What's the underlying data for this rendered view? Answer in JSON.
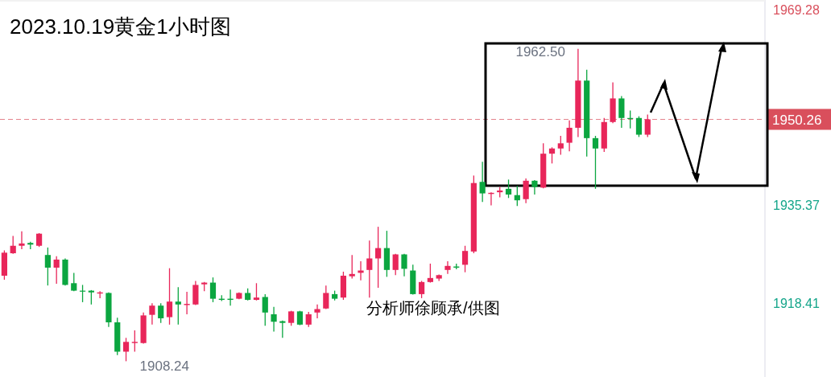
{
  "chart_data": {
    "type": "candlestick",
    "title": "2023.10.19黄金1小时图",
    "categories": [
      null,
      null,
      null,
      null,
      null,
      null,
      null,
      null,
      null,
      null,
      null,
      null,
      null,
      null,
      null,
      null,
      null,
      null,
      null,
      null,
      null,
      null,
      null,
      null,
      null,
      null,
      null,
      null,
      null,
      null,
      null,
      null,
      null,
      null,
      null,
      null,
      null,
      null,
      null,
      null,
      null,
      null,
      null,
      null,
      null,
      null,
      null,
      null,
      null,
      null,
      null,
      null,
      null,
      null,
      null,
      null,
      null,
      null,
      null,
      null,
      null,
      null,
      null,
      null,
      null,
      null,
      null,
      null,
      null,
      null,
      null,
      null,
      null,
      null,
      null,
      null,
      null,
      null,
      null,
      null,
      null,
      null,
      null,
      null,
      null,
      null,
      null,
      null
    ],
    "ohlc": [
      [
        1923.1,
        1927.5,
        1922.4,
        1927.1
      ],
      [
        1927.0,
        1930.0,
        1926.9,
        1928.3
      ],
      [
        1928.3,
        1930.8,
        1927.7,
        1928.7
      ],
      [
        1928.8,
        1929.0,
        1927.7,
        1928.5
      ],
      [
        1928.3,
        1930.5,
        1928.1,
        1930.4
      ],
      [
        1926.7,
        1928.0,
        1921.4,
        1924.5
      ],
      [
        1924.5,
        1926.5,
        1921.7,
        1925.9
      ],
      [
        1925.9,
        1926.1,
        1921.4,
        1921.5
      ],
      [
        1921.8,
        1923.6,
        1920.4,
        1920.5
      ],
      [
        1920.5,
        1921.5,
        1918.5,
        1920.4
      ],
      [
        1920.5,
        1920.6,
        1918.1,
        1920.2
      ],
      [
        1920.0,
        1920.4,
        1919.2,
        1920.2
      ],
      [
        1920.1,
        1920.2,
        1914.2,
        1915.0
      ],
      [
        1915.0,
        1915.8,
        1909.3,
        1909.9
      ],
      [
        1909.9,
        1912.3,
        1908.24,
        1911.6
      ],
      [
        1911.4,
        1913.6,
        1909.9,
        1911.6
      ],
      [
        1911.4,
        1916.7,
        1911.3,
        1916.2
      ],
      [
        1916.3,
        1918.3,
        1914.6,
        1917.9
      ],
      [
        1917.9,
        1918.3,
        1914.9,
        1915.7
      ],
      [
        1915.9,
        1924.4,
        1914.6,
        1918.6
      ],
      [
        1918.6,
        1921.1,
        1914.6,
        1918.1
      ],
      [
        1918.0,
        1920.3,
        1916.4,
        1918.2
      ],
      [
        1918.1,
        1922.2,
        1918.0,
        1921.5
      ],
      [
        1921.6,
        1922.0,
        1920.4,
        1921.9
      ],
      [
        1921.9,
        1922.8,
        1918.5,
        1919.1
      ],
      [
        1919.1,
        1919.7,
        1918.7,
        1918.9
      ],
      [
        1919.1,
        1920.7,
        1917.9,
        1918.9
      ],
      [
        1919.1,
        1920.2,
        1919.0,
        1920.1
      ],
      [
        1920.1,
        1920.9,
        1918.8,
        1918.9
      ],
      [
        1918.9,
        1921.8,
        1918.8,
        1919.3
      ],
      [
        1919.4,
        1919.9,
        1914.4,
        1916.7
      ],
      [
        1916.4,
        1917.7,
        1913.4,
        1915.1
      ],
      [
        1915.2,
        1915.3,
        1912.3,
        1914.9
      ],
      [
        1914.9,
        1917.0,
        1914.4,
        1916.9
      ],
      [
        1916.9,
        1917.0,
        1914.5,
        1914.6
      ],
      [
        1914.6,
        1916.8,
        1914.2,
        1916.4
      ],
      [
        1916.7,
        1918.1,
        1915.7,
        1917.3
      ],
      [
        1917.4,
        1921.4,
        1917.3,
        1920.1
      ],
      [
        1919.9,
        1920.5,
        1918.8,
        1919.1
      ],
      [
        1919.3,
        1923.8,
        1918.9,
        1923.1
      ],
      [
        1923.0,
        1926.7,
        1922.6,
        1923.4
      ],
      [
        1923.6,
        1925.6,
        1922.3,
        1924.0
      ],
      [
        1924.1,
        1929.2,
        1919.3,
        1926.1
      ],
      [
        1926.1,
        1931.6,
        1921.0,
        1927.9
      ],
      [
        1927.9,
        1930.9,
        1922.9,
        1924.1
      ],
      [
        1924.1,
        1926.9,
        1923.2,
        1926.8
      ],
      [
        1926.8,
        1926.9,
        1923.0,
        1924.3
      ],
      [
        1924.0,
        1925.0,
        1919.8,
        1919.9
      ],
      [
        1919.9,
        1922.2,
        1919.2,
        1922.0
      ],
      [
        1922.0,
        1925.2,
        1921.9,
        1922.7
      ],
      [
        1922.6,
        1923.3,
        1922.2,
        1923.2
      ],
      [
        1924.1,
        1925.6,
        1923.4,
        1924.8
      ],
      [
        1924.7,
        1925.2,
        1924.2,
        1924.5
      ],
      [
        1925.0,
        1928.3,
        1923.7,
        1927.4
      ],
      [
        1927.3,
        1940.5,
        1927.0,
        1939.2
      ],
      [
        1939.4,
        1942.9,
        1935.9,
        1937.4
      ],
      [
        1937.3,
        1937.6,
        1935.3,
        1937.5
      ],
      [
        1937.6,
        1938.5,
        1936.7,
        1937.9
      ],
      [
        1938.2,
        1939.8,
        1936.6,
        1937.2
      ],
      [
        1937.1,
        1938.7,
        1935.2,
        1936.2
      ],
      [
        1936.4,
        1940.0,
        1935.7,
        1939.6
      ],
      [
        1939.6,
        1939.7,
        1937.2,
        1938.5
      ],
      [
        1938.4,
        1946.1,
        1938.3,
        1944.3
      ],
      [
        1944.3,
        1945.4,
        1942.6,
        1945.2
      ],
      [
        1945.2,
        1947.4,
        1944.1,
        1946.1
      ],
      [
        1946.2,
        1950.1,
        1944.7,
        1948.8
      ],
      [
        1948.8,
        1962.5,
        1947.2,
        1957.0
      ],
      [
        1957.0,
        1958.9,
        1943.8,
        1947.0
      ],
      [
        1947.0,
        1947.4,
        1938.2,
        1945.2
      ],
      [
        1945.2,
        1950.5,
        1944.6,
        1949.8
      ],
      [
        1949.8,
        1956.7,
        1949.6,
        1953.9
      ],
      [
        1953.9,
        1954.3,
        1948.8,
        1950.5
      ],
      [
        1950.5,
        1951.8,
        1948.7,
        1950.4
      ],
      [
        1950.5,
        1950.8,
        1947.2,
        1947.6
      ],
      [
        1947.6,
        1951.1,
        1947.2,
        1950.26
      ],
      null,
      null,
      null,
      null,
      null,
      null,
      null,
      null,
      null,
      null,
      null,
      null,
      null
    ],
    "colors": [
      "#e8265a",
      "#e8265a",
      "#e8265a",
      "#0ba640",
      "#e8265a",
      "#0ba640",
      "#e8265a",
      "#0ba640",
      "#0ba640",
      "#0ba640",
      "#0ba640",
      "#e8265a",
      "#0ba640",
      "#0ba640",
      "#e8265a",
      "#e8265a",
      "#e8265a",
      "#e8265a",
      "#0ba640",
      "#e8265a",
      "#0ba640",
      "#e8265a",
      "#e8265a",
      "#e8265a",
      "#0ba640",
      "#0ba640",
      "#0ba640",
      "#e8265a",
      "#0ba640",
      "#e8265a",
      "#0ba640",
      "#0ba640",
      "#0ba640",
      "#e8265a",
      "#0ba640",
      "#e8265a",
      "#e8265a",
      "#e8265a",
      "#0ba640",
      "#e8265a",
      "#e8265a",
      "#e8265a",
      "#e8265a",
      "#e8265a",
      "#0ba640",
      "#e8265a",
      "#0ba640",
      "#0ba640",
      "#e8265a",
      "#e8265a",
      "#e8265a",
      "#e8265a",
      "#0ba640",
      "#e8265a",
      "#e8265a",
      "#0ba640",
      "#e8265a",
      "#e8265a",
      "#0ba640",
      "#0ba640",
      "#e8265a",
      "#0ba640",
      "#e8265a",
      "#e8265a",
      "#e8265a",
      "#e8265a",
      "#e8265a",
      "#0ba640",
      "#0ba640",
      "#e8265a",
      "#e8265a",
      "#0ba640",
      "#0ba640",
      "#0ba640",
      "#e8265a",
      null,
      null,
      null,
      null,
      null,
      null,
      null,
      null,
      null,
      null,
      null,
      null,
      null
    ],
    "ylim": [
      1905.5,
      1971
    ],
    "yticks": [
      1918.41,
      1935.37,
      1969.28
    ],
    "ref_lines": [
      {
        "axis": "y",
        "value": 1950.26,
        "label": "1950.26",
        "color": "#d94f5c",
        "line_style": "dashed"
      }
    ],
    "annotations": [
      "1962.50",
      "1908.24",
      "分析师徐顾承/供图"
    ]
  }
}
